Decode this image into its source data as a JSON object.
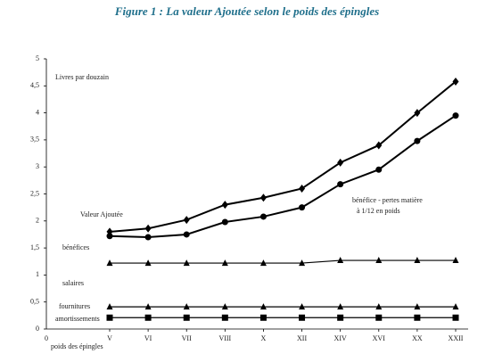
{
  "chart_data": {
    "type": "line",
    "title": "Figure 1 : La valeur Ajoutée selon le poids des épingles",
    "y_label": "Livres par douzain",
    "x_label": "poids des épingles",
    "x_origin_label": "0",
    "categories": [
      "V",
      "VI",
      "VII",
      "VIII",
      "X",
      "XII",
      "XIV",
      "XVI",
      "XX",
      "XXII"
    ],
    "ylim": [
      0,
      5
    ],
    "yticks": [
      0,
      {
        "value": 0.5,
        "label": "0,5"
      },
      1,
      {
        "value": 1.5,
        "label": "1,5"
      },
      2,
      {
        "value": 2.5,
        "label": "2,5"
      },
      3,
      {
        "value": 3.5,
        "label": "3,5"
      },
      4,
      {
        "value": 4.5,
        "label": "4,5"
      },
      5
    ],
    "series": [
      {
        "name": "Valeur Ajoutée",
        "color": "#000000",
        "marker": "diamond",
        "values": [
          1.8,
          1.86,
          2.02,
          2.3,
          2.43,
          2.6,
          3.08,
          3.4,
          4.0,
          4.58
        ]
      },
      {
        "name": "bénéfices",
        "color": "#000000",
        "marker": "circle",
        "values": [
          1.72,
          1.7,
          1.75,
          1.98,
          2.08,
          2.25,
          2.68,
          2.95,
          3.48,
          3.95
        ]
      },
      {
        "name": "salaires",
        "color": "#000000",
        "marker": "triangle",
        "values": [
          1.22,
          1.22,
          1.22,
          1.22,
          1.22,
          1.22,
          1.27,
          1.27,
          1.27,
          1.27
        ]
      },
      {
        "name": "fournitures",
        "color": "#000000",
        "marker": "triangle",
        "values": [
          0.41,
          0.41,
          0.41,
          0.41,
          0.41,
          0.41,
          0.41,
          0.41,
          0.41,
          0.41
        ]
      },
      {
        "name": "amortissements",
        "color": "#000000",
        "marker": "square",
        "values": [
          0.21,
          0.21,
          0.21,
          0.21,
          0.21,
          0.21,
          0.21,
          0.21,
          0.21,
          0.21
        ]
      }
    ],
    "annotation": [
      "bénéfice - pertes matière",
      "à 1/12 en poids"
    ]
  }
}
